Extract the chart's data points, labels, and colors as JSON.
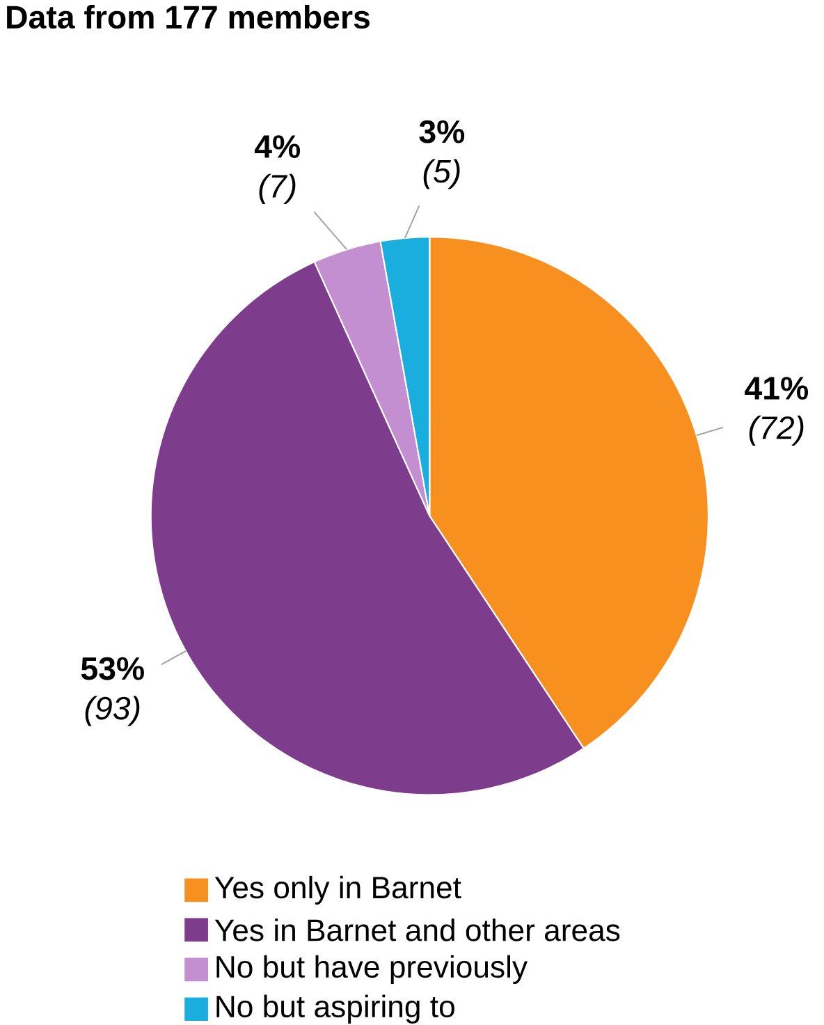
{
  "chart_data": {
    "type": "pie",
    "title": "Data from 177 members",
    "categories": [
      "Yes only in Barnet",
      "Yes in Barnet and other areas",
      "No but have previously",
      "No but aspiring to"
    ],
    "values": [
      72,
      93,
      7,
      5
    ],
    "value_labels": [
      "**41%** *(72)*",
      "**53%** *(93)*",
      "**4%** *(7)*",
      "**3%** *(5)*"
    ],
    "colors": [
      "#f7901e",
      "#7d3c8c",
      "#c48fd0",
      "#1aaedf"
    ],
    "legend": "bottom"
  }
}
